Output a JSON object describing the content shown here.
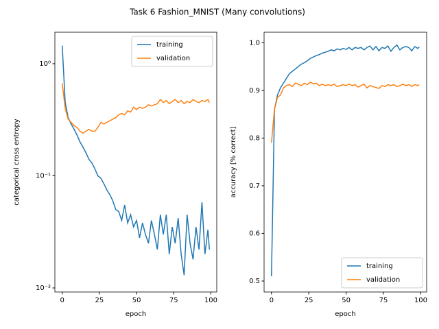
{
  "title": "Task 6 Fashion_MNIST (Many convolutions)",
  "chart_data": [
    {
      "type": "line",
      "x_label": "epoch",
      "y_label": "categorical cross entropy",
      "log_scale": true,
      "legend": "upper right",
      "xlim": [
        -4.95,
        103.95
      ],
      "xticks": [
        0,
        25,
        50,
        75,
        100
      ],
      "ylim": [
        0.0092,
        1.91
      ],
      "yticks": [
        {
          "value": 0.01,
          "label": "10⁻²"
        },
        {
          "value": 0.1,
          "label": "10⁻¹"
        },
        {
          "value": 1,
          "label": "10⁰"
        }
      ],
      "x": [
        0,
        2,
        4,
        6,
        8,
        10,
        12,
        14,
        16,
        18,
        20,
        22,
        24,
        26,
        28,
        30,
        32,
        34,
        36,
        38,
        40,
        42,
        44,
        46,
        48,
        50,
        52,
        54,
        56,
        58,
        60,
        62,
        64,
        66,
        68,
        70,
        72,
        74,
        76,
        78,
        80,
        82,
        84,
        86,
        88,
        90,
        92,
        94,
        96,
        98,
        99
      ],
      "series": [
        {
          "name": "training",
          "color": "#1f77b4",
          "values": [
            1.45,
            0.45,
            0.33,
            0.29,
            0.26,
            0.23,
            0.2,
            0.18,
            0.16,
            0.14,
            0.13,
            0.115,
            0.1,
            0.095,
            0.085,
            0.075,
            0.068,
            0.06,
            0.05,
            0.048,
            0.04,
            0.055,
            0.038,
            0.045,
            0.035,
            0.04,
            0.028,
            0.038,
            0.03,
            0.025,
            0.04,
            0.03,
            0.022,
            0.045,
            0.03,
            0.045,
            0.02,
            0.035,
            0.025,
            0.042,
            0.02,
            0.013,
            0.045,
            0.025,
            0.018,
            0.035,
            0.022,
            0.058,
            0.02,
            0.033,
            0.022
          ]
        },
        {
          "name": "validation",
          "color": "#ff7f0e",
          "values": [
            0.67,
            0.4,
            0.32,
            0.3,
            0.28,
            0.27,
            0.25,
            0.24,
            0.25,
            0.26,
            0.25,
            0.25,
            0.27,
            0.3,
            0.29,
            0.3,
            0.31,
            0.32,
            0.33,
            0.35,
            0.36,
            0.35,
            0.38,
            0.37,
            0.41,
            0.39,
            0.41,
            0.4,
            0.41,
            0.43,
            0.42,
            0.43,
            0.44,
            0.48,
            0.45,
            0.47,
            0.44,
            0.46,
            0.48,
            0.45,
            0.47,
            0.44,
            0.46,
            0.45,
            0.48,
            0.46,
            0.45,
            0.47,
            0.46,
            0.48,
            0.45
          ]
        }
      ]
    },
    {
      "type": "line",
      "x_label": "epoch",
      "y_label": "accuracy [% correct]",
      "log_scale": false,
      "legend": "lower right",
      "xlim": [
        -4.95,
        103.95
      ],
      "xticks": [
        0,
        25,
        50,
        75,
        100
      ],
      "ylim": [
        0.477,
        1.022
      ],
      "yticks": [
        0.5,
        0.6,
        0.7,
        0.8,
        0.9,
        {
          "value": 1,
          "label": "1.0"
        }
      ],
      "x": [
        0,
        2,
        4,
        6,
        8,
        10,
        12,
        14,
        16,
        18,
        20,
        22,
        24,
        26,
        28,
        30,
        32,
        34,
        36,
        38,
        40,
        42,
        44,
        46,
        48,
        50,
        52,
        54,
        56,
        58,
        60,
        62,
        64,
        66,
        68,
        70,
        72,
        74,
        76,
        78,
        80,
        82,
        84,
        86,
        88,
        90,
        92,
        94,
        96,
        98,
        99
      ],
      "series": [
        {
          "name": "training",
          "color": "#1f77b4",
          "values": [
            0.51,
            0.86,
            0.89,
            0.905,
            0.915,
            0.925,
            0.935,
            0.94,
            0.945,
            0.95,
            0.955,
            0.958,
            0.962,
            0.967,
            0.97,
            0.973,
            0.975,
            0.978,
            0.98,
            0.982,
            0.985,
            0.983,
            0.987,
            0.985,
            0.988,
            0.986,
            0.99,
            0.985,
            0.99,
            0.988,
            0.99,
            0.985,
            0.99,
            0.993,
            0.985,
            0.992,
            0.983,
            0.99,
            0.988,
            0.993,
            0.982,
            0.99,
            0.995,
            0.985,
            0.99,
            0.992,
            0.99,
            0.983,
            0.992,
            0.988,
            0.991
          ]
        },
        {
          "name": "validation",
          "color": "#ff7f0e",
          "values": [
            0.79,
            0.86,
            0.885,
            0.89,
            0.905,
            0.91,
            0.912,
            0.908,
            0.915,
            0.913,
            0.91,
            0.915,
            0.912,
            0.917,
            0.914,
            0.915,
            0.91,
            0.913,
            0.91,
            0.912,
            0.91,
            0.913,
            0.908,
            0.91,
            0.912,
            0.91,
            0.913,
            0.91,
            0.912,
            0.907,
            0.91,
            0.913,
            0.905,
            0.91,
            0.908,
            0.906,
            0.904,
            0.91,
            0.908,
            0.912,
            0.91,
            0.912,
            0.908,
            0.91,
            0.913,
            0.91,
            0.912,
            0.908,
            0.912,
            0.91,
            0.912
          ]
        }
      ]
    }
  ]
}
